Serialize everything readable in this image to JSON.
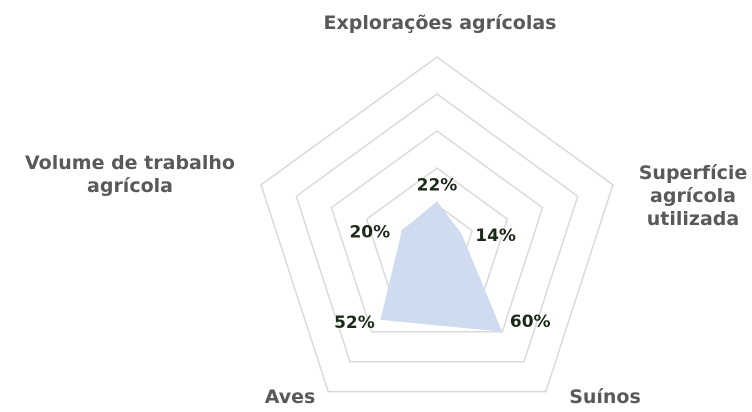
{
  "chart_data": {
    "type": "radar",
    "categories": [
      "Explorações agrícolas",
      "Superfície agrícola utilizada",
      "Suínos",
      "Aves",
      "Volume de trabalho agrícola"
    ],
    "values": [
      22,
      14,
      60,
      52,
      20
    ],
    "value_labels": [
      "22%",
      "14%",
      "60%",
      "52%",
      "20%"
    ],
    "color": "#cfdcf0",
    "ylim": [
      0,
      100
    ],
    "yticks": [
      0,
      20,
      40,
      60,
      80,
      100
    ],
    "grid": true
  }
}
